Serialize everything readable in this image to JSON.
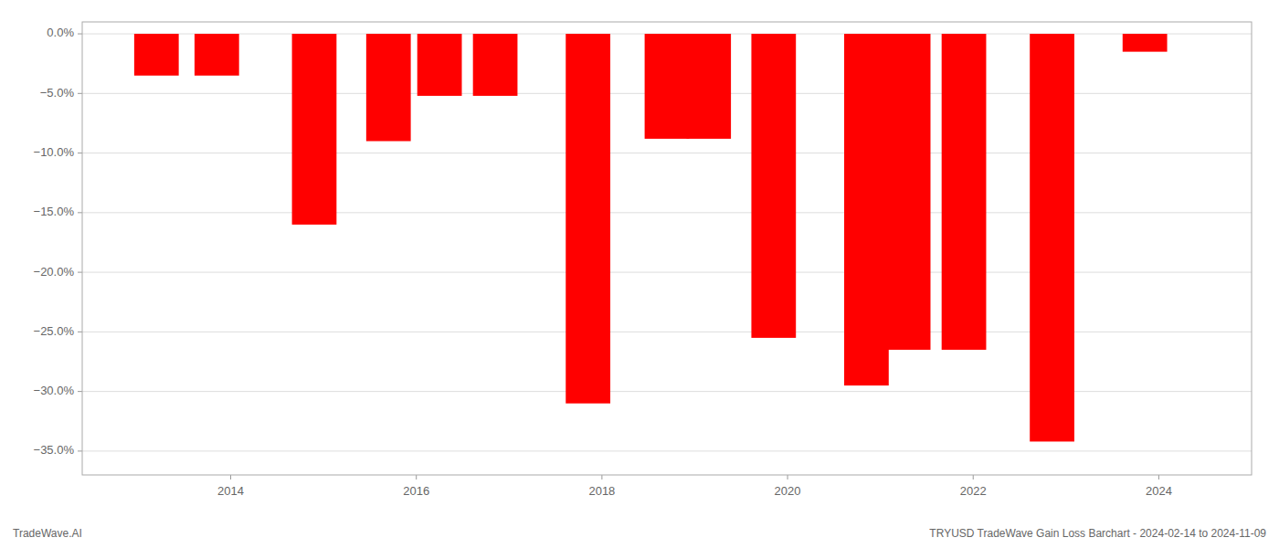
{
  "chart_data": {
    "type": "bar",
    "x": [
      2013.2,
      2013.85,
      2014.9,
      2015.7,
      2016.25,
      2016.85,
      2017.85,
      2018.7,
      2019.15,
      2019.85,
      2020.85,
      2021.3,
      2021.9,
      2022.85,
      2023.85
    ],
    "values": [
      -3.5,
      -3.5,
      -16.0,
      -9.0,
      -5.2,
      -5.2,
      -31.0,
      -8.8,
      -8.8,
      -25.5,
      -29.5,
      -26.5,
      -26.5,
      -34.2,
      -1.5
    ],
    "color": "#ff0000",
    "xlim": [
      2012.4,
      2025.0
    ],
    "xticks": [
      2014,
      2016,
      2018,
      2020,
      2022,
      2024
    ],
    "ylim": [
      -37,
      1.0
    ],
    "yticks": [
      {
        "value": 0,
        "label": "0.0%"
      },
      {
        "value": -5,
        "label": "−5.0%"
      },
      {
        "value": -10,
        "label": "−10.0%"
      },
      {
        "value": -15,
        "label": "−15.0%"
      },
      {
        "value": -20,
        "label": "−20.0%"
      },
      {
        "value": -25,
        "label": "−25.0%"
      },
      {
        "value": -30,
        "label": "−30.0%"
      },
      {
        "value": -35,
        "label": "−35.0%"
      }
    ],
    "grid": true,
    "annotations": [
      "TradeWave.AI",
      "TRYUSD TradeWave Gain Loss Barchart - 2024-02-14 to 2024-11-09"
    ]
  }
}
